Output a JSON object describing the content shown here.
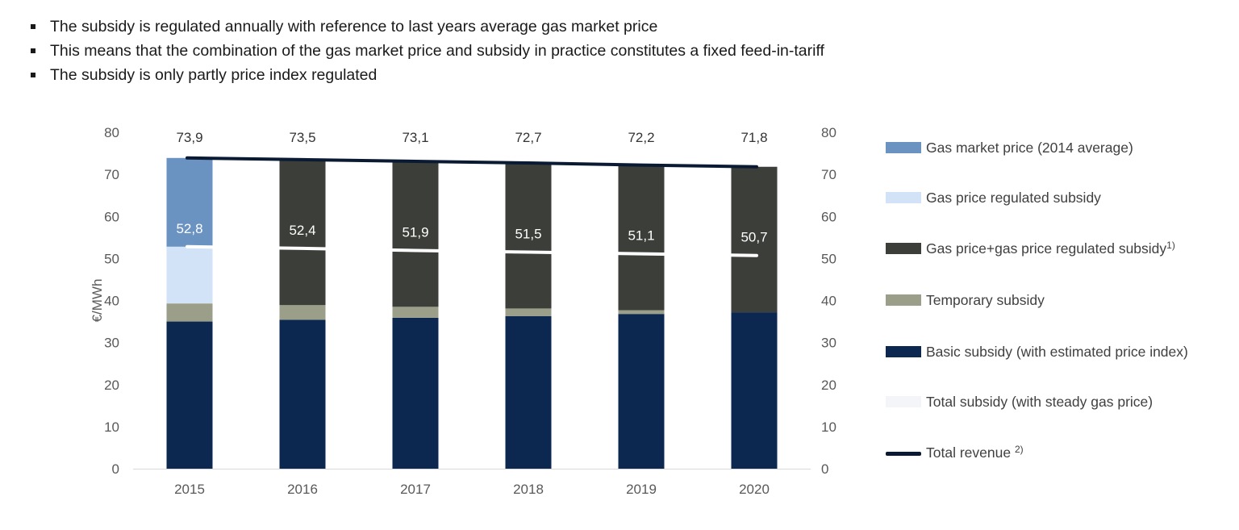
{
  "bullets": [
    "The subsidy is regulated annually with reference to last years average gas market price",
    "This means that the combination of the gas market price and subsidy in practice constitutes a fixed feed-in-tariff",
    "The subsidy is only partly price index regulated"
  ],
  "legend": {
    "gas_market_price": "Gas market price (2014 average)",
    "gas_price_regulated_subsidy": "Gas price regulated subsidy",
    "gas_price_plus_subsidy": "Gas price+gas price regulated subsidy",
    "gas_price_plus_subsidy_note": "1)",
    "temporary_subsidy": "Temporary subsidy",
    "basic_subsidy": "Basic subsidy (with estimated price index)",
    "total_subsidy": "Total subsidy (with steady gas price)",
    "total_revenue": "Total revenue",
    "total_revenue_note": "2)"
  },
  "colors": {
    "gas_market_price": "#6b93c2",
    "gas_price_regulated_subsidy": "#d2e3f7",
    "gas_price_plus_subsidy": "#3b3e39",
    "temporary_subsidy": "#9b9f8a",
    "basic_subsidy": "#0d2850",
    "total_subsidy": "#ffffff",
    "total_revenue": "#0a1a33"
  },
  "chart_data": {
    "type": "bar",
    "stacked": true,
    "categories": [
      "2015",
      "2016",
      "2017",
      "2018",
      "2019",
      "2020"
    ],
    "ylabel": "€/MWh",
    "ylim": [
      0,
      80
    ],
    "yticks": [
      "0",
      "10",
      "20",
      "30",
      "40",
      "50",
      "60",
      "70",
      "80"
    ],
    "secondary_ylim": [
      0,
      80
    ],
    "series": [
      {
        "key": "basic_subsidy",
        "name": "Basic subsidy (with estimated price index)",
        "values": [
          35.0,
          35.4,
          35.9,
          36.3,
          36.8,
          37.2
        ]
      },
      {
        "key": "temporary_subsidy",
        "name": "Temporary subsidy",
        "values": [
          4.3,
          3.5,
          2.6,
          1.8,
          0.9,
          0
        ]
      },
      {
        "key": "gas_price_regulated_subsidy",
        "name": "Gas price regulated subsidy",
        "values": [
          13.5,
          0,
          0,
          0,
          0,
          0
        ]
      },
      {
        "key": "gas_market_price",
        "name": "Gas market price (2014 average)",
        "values": [
          21.1,
          0,
          0,
          0,
          0,
          0
        ]
      },
      {
        "key": "gas_price_plus_subsidy",
        "name": "Gas price+gas price regulated subsidy",
        "values": [
          0,
          34.6,
          34.6,
          34.6,
          34.5,
          34.6
        ]
      }
    ],
    "lines": [
      {
        "key": "total_revenue",
        "name": "Total revenue",
        "values": [
          73.9,
          73.5,
          73.1,
          72.7,
          72.2,
          71.8
        ]
      },
      {
        "key": "total_subsidy",
        "name": "Total subsidy (with steady gas price)",
        "values": [
          52.8,
          52.4,
          51.9,
          51.5,
          51.1,
          50.7
        ]
      }
    ],
    "top_labels": [
      "73,9",
      "73,5",
      "73,1",
      "72,7",
      "72,2",
      "71,8"
    ],
    "mid_labels": [
      "52,8",
      "52,4",
      "51,9",
      "51,5",
      "51,1",
      "50,7"
    ]
  }
}
